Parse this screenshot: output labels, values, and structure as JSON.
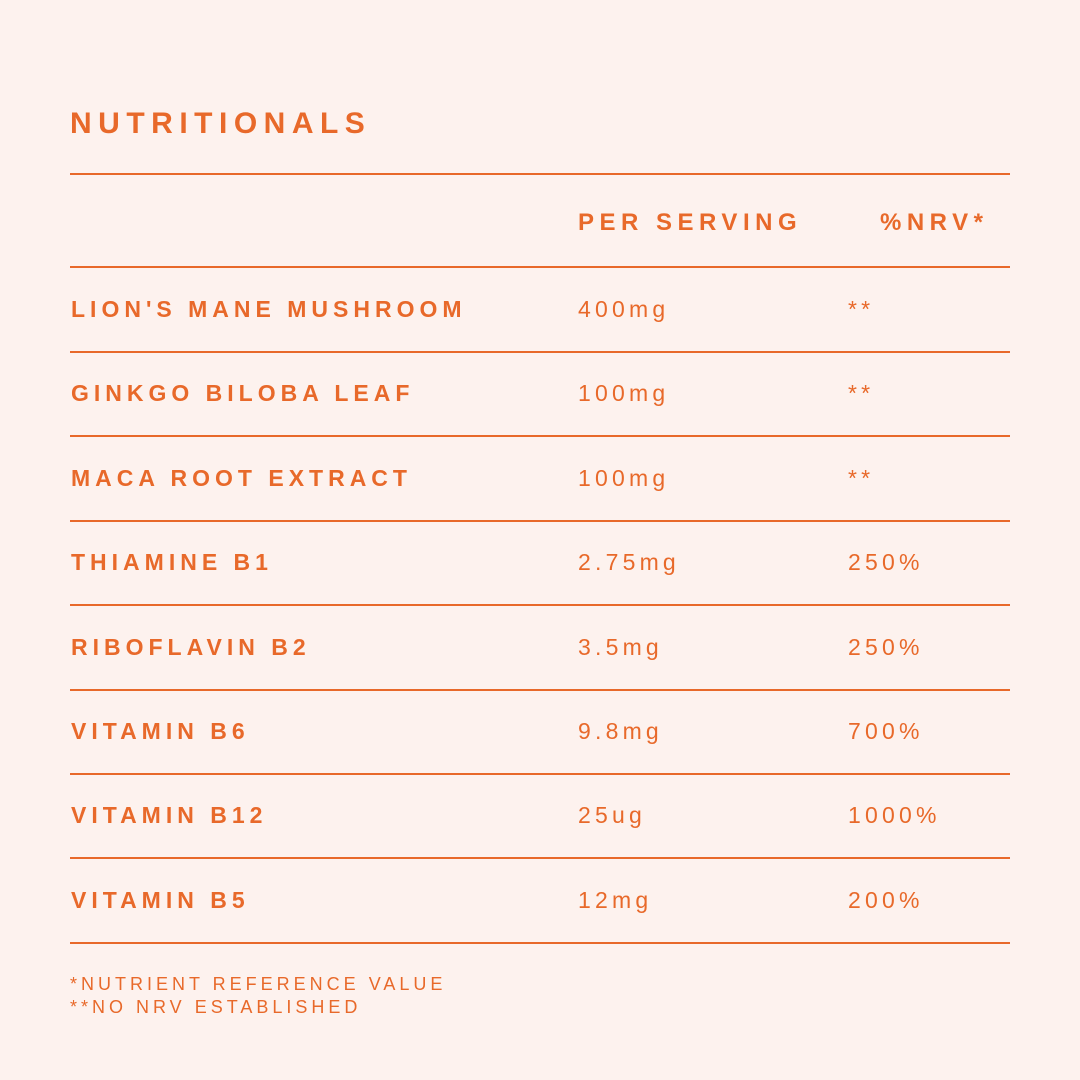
{
  "title": "NUTRITIONALS",
  "header": {
    "per_serving": "PER SERVING",
    "nrv": "%NRV*"
  },
  "rows": [
    {
      "name": "LION'S MANE MUSHROOM",
      "per_serving": "400mg",
      "nrv": "**"
    },
    {
      "name": "GINKGO BILOBA LEAF",
      "per_serving": "100mg",
      "nrv": "**"
    },
    {
      "name": "MACA ROOT EXTRACT",
      "per_serving": "100mg",
      "nrv": "**"
    },
    {
      "name": "THIAMINE B1",
      "per_serving": "2.75mg",
      "nrv": "250%"
    },
    {
      "name": "RIBOFLAVIN B2",
      "per_serving": "3.5mg",
      "nrv": "250%"
    },
    {
      "name": "VITAMIN B6",
      "per_serving": "9.8mg",
      "nrv": "700%"
    },
    {
      "name": "VITAMIN B12",
      "per_serving": "25ug",
      "nrv": "1000%"
    },
    {
      "name": "VITAMIN B5",
      "per_serving": "12mg",
      "nrv": "200%"
    }
  ],
  "footnotes": [
    "*NUTRIENT REFERENCE VALUE",
    "**NO NRV ESTABLISHED"
  ],
  "colors": {
    "background": "#fdf2ee",
    "accent": "#e8692a"
  }
}
